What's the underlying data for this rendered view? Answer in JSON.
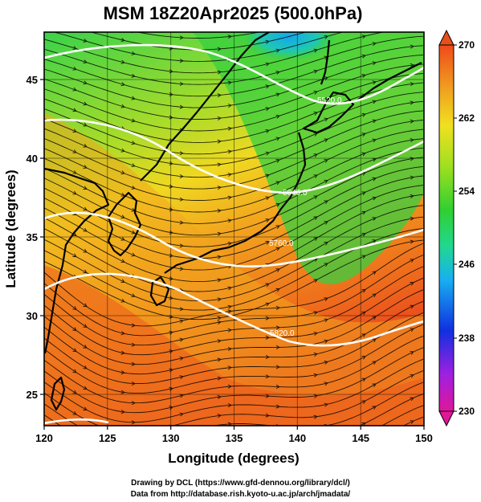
{
  "figure": {
    "title": "MSM 18Z20Apr2025 (500.0hPa)",
    "xlabel": "Longitude (degrees)",
    "ylabel": "Latitude  (degrees)",
    "x_ticks": [
      "120",
      "125",
      "130",
      "135",
      "140",
      "145",
      "150"
    ],
    "y_ticks": [
      "25",
      "30",
      "35",
      "40",
      "45"
    ],
    "credit_line1": "Drawing by DCL (https://www.gfd-dennou.org/library/dcl/)",
    "credit_line2": "Data from http://database.rish.kyoto-u.ac.jp/arch/jmadata/"
  },
  "map": {
    "xlim": [
      120,
      150
    ],
    "ylim": [
      22.5,
      47.5
    ],
    "grid": true,
    "field": "temperature (K) shading, wind streamlines, geopotential height contours",
    "contour_labels": [
      "5520.0",
      "5640.0",
      "5760.0",
      "5820.0"
    ],
    "colors": {
      "cold": "#1aa3f0",
      "mid": "#2ecc2e",
      "warm": "#f08a1e",
      "hot": "#e8401e",
      "contour": "#ffffff",
      "streamline": "#000000"
    }
  },
  "colorbar": {
    "ticks": [
      "270",
      "262",
      "254",
      "246",
      "238",
      "230"
    ],
    "range": [
      230,
      270
    ],
    "colors": [
      "#e0169a",
      "#a020e0",
      "#1030e0",
      "#18b0f0",
      "#20d890",
      "#30d030",
      "#a0e020",
      "#f0e020",
      "#f0a020",
      "#f04a1a"
    ]
  }
}
